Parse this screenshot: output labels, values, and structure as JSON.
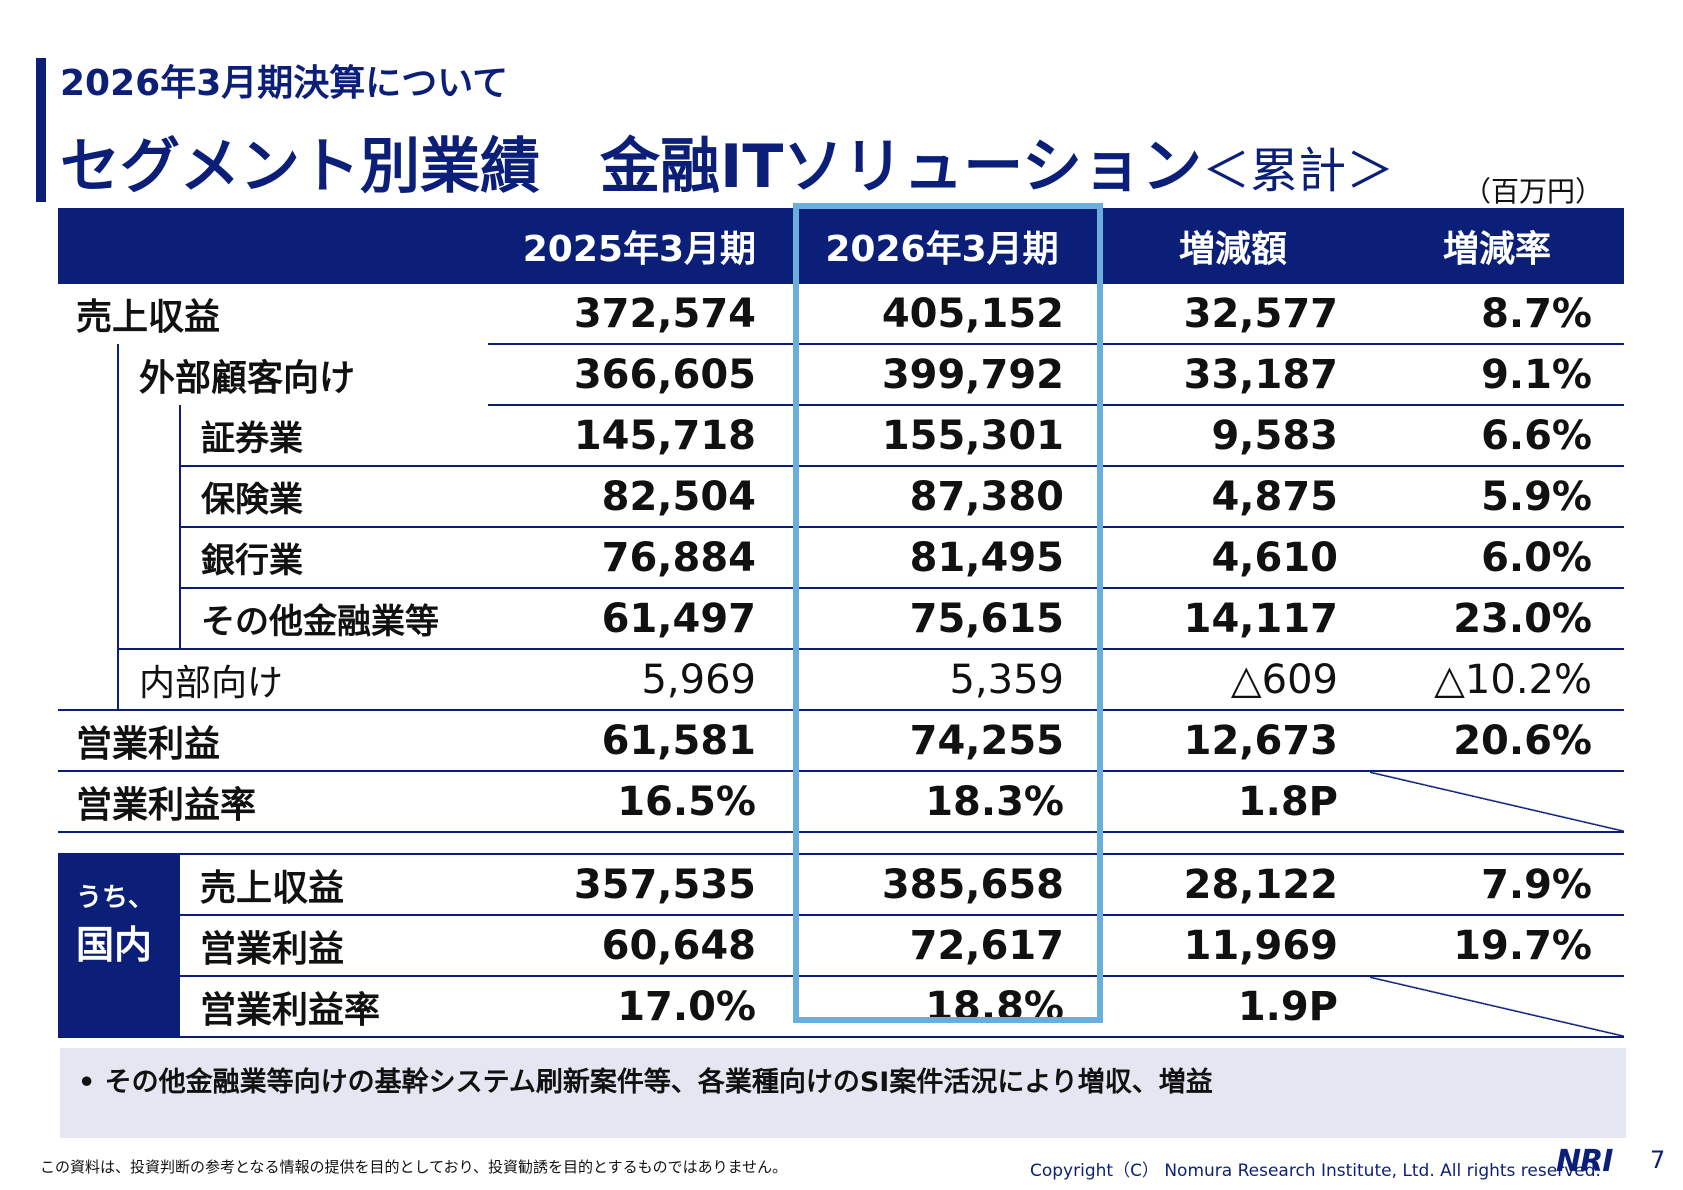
{
  "header": {
    "subtitle": "2026年3月期決算について",
    "title": "セグメント別業績　金融ITソリューション",
    "title_suffix": "＜累計＞",
    "unit": "（百万円）"
  },
  "table": {
    "columns": [
      "2025年3月期",
      "2026年3月期",
      "増減額",
      "増減率"
    ],
    "rows": [
      {
        "label": "売上収益",
        "v2025": "372,574",
        "v2026": "405,152",
        "diff": "32,577",
        "rate": "8.7%"
      },
      {
        "label": "外部顧客向け",
        "v2025": "366,605",
        "v2026": "399,792",
        "diff": "33,187",
        "rate": "9.1%"
      },
      {
        "label": "証券業",
        "v2025": "145,718",
        "v2026": "155,301",
        "diff": "9,583",
        "rate": "6.6%"
      },
      {
        "label": "保険業",
        "v2025": "82,504",
        "v2026": "87,380",
        "diff": "4,875",
        "rate": "5.9%"
      },
      {
        "label": "銀行業",
        "v2025": "76,884",
        "v2026": "81,495",
        "diff": "4,610",
        "rate": "6.0%"
      },
      {
        "label": "その他金融業等",
        "v2025": "61,497",
        "v2026": "75,615",
        "diff": "14,117",
        "rate": "23.0%"
      },
      {
        "label": "内部向け",
        "v2025": "5,969",
        "v2026": "5,359",
        "diff": "△609",
        "rate": "△10.2%"
      },
      {
        "label": "営業利益",
        "v2025": "61,581",
        "v2026": "74,255",
        "diff": "12,673",
        "rate": "20.6%"
      },
      {
        "label": "営業利益率",
        "v2025": "16.5%",
        "v2026": "18.3%",
        "diff": "1.8P",
        "rate": ""
      }
    ],
    "domestic": {
      "label_small": "うち、",
      "label_big": "国内",
      "rows": [
        {
          "label": "売上収益",
          "v2025": "357,535",
          "v2026": "385,658",
          "diff": "28,122",
          "rate": "7.9%"
        },
        {
          "label": "営業利益",
          "v2025": "60,648",
          "v2026": "72,617",
          "diff": "11,969",
          "rate": "19.7%"
        },
        {
          "label": "営業利益率",
          "v2025": "17.0%",
          "v2026": "18.8%",
          "diff": "1.9P",
          "rate": ""
        }
      ]
    }
  },
  "note": "• その他金融業等向けの基幹システム刷新案件等、各業種向けのSI案件活況により増収、増益",
  "footer": {
    "disclaimer": "この資料は、投資判断の参考となる情報の提供を目的としており、投資勧誘を目的とするものではありません。",
    "copyright": "Copyright（C） Nomura Research Institute, Ltd. All rights reserved.",
    "logo": "NRI",
    "page": "7"
  },
  "colors": {
    "navy": "#0b1f78",
    "highlight": "#6aaede",
    "note_bg": "#e4e7f1"
  }
}
